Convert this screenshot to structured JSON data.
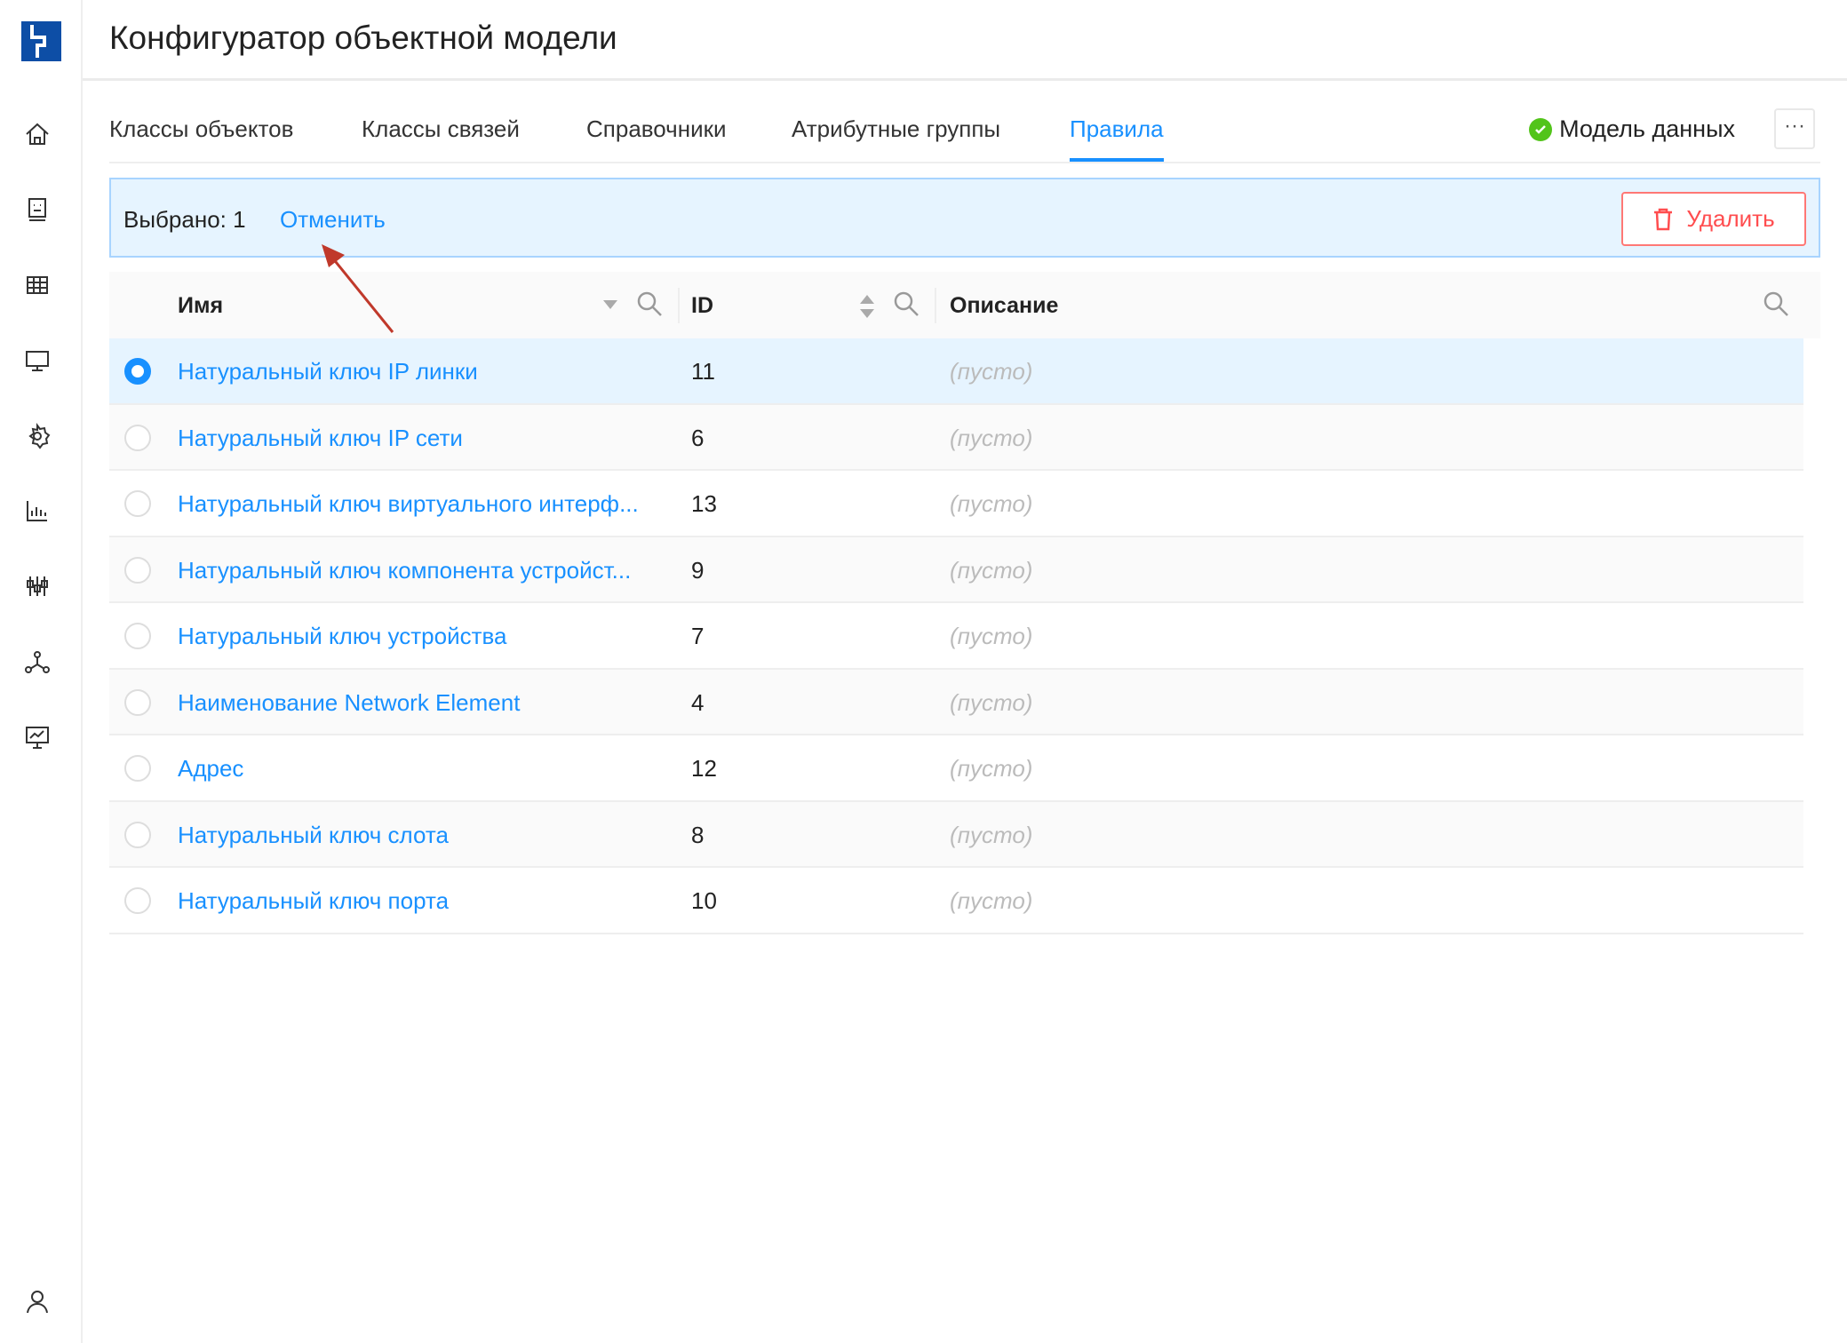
{
  "app": {
    "title": "Конфигуратор объектной модели"
  },
  "sidebar": {
    "items": [
      "home-icon",
      "profile-card-icon",
      "table-icon",
      "monitor-icon",
      "gear-icon",
      "bar-chart-icon",
      "sliders-icon",
      "network-icon",
      "presentation-chart-icon"
    ],
    "bottom": "user-icon"
  },
  "tabs": [
    {
      "label": "Классы объектов"
    },
    {
      "label": "Классы связей"
    },
    {
      "label": "Справочники"
    },
    {
      "label": "Атрибутные группы"
    },
    {
      "label": "Правила",
      "active": true
    }
  ],
  "model": {
    "label": "Модель данных",
    "status_color": "#52c41a",
    "more": "···"
  },
  "selection": {
    "count_label": "Выбрано: 1",
    "cancel_label": "Отменить",
    "delete_label": "Удалить"
  },
  "table": {
    "columns": [
      "Имя",
      "ID",
      "Описание"
    ],
    "rows": [
      {
        "name": "Натуральный ключ IP линки",
        "id": "11",
        "desc": "(пусто)",
        "selected": true
      },
      {
        "name": "Натуральный ключ IP сети",
        "id": "6",
        "desc": "(пусто)"
      },
      {
        "name": "Натуральный ключ виртуального интерф...",
        "id": "13",
        "desc": "(пусто)"
      },
      {
        "name": "Натуральный ключ компонента устройст...",
        "id": "9",
        "desc": "(пусто)"
      },
      {
        "name": "Натуральный ключ устройства",
        "id": "7",
        "desc": "(пусто)"
      },
      {
        "name": "Наименование Network Element",
        "id": "4",
        "desc": "(пусто)"
      },
      {
        "name": "Адрес",
        "id": "12",
        "desc": "(пусто)"
      },
      {
        "name": "Натуральный ключ слота",
        "id": "8",
        "desc": "(пусто)"
      },
      {
        "name": "Натуральный ключ порта",
        "id": "10",
        "desc": "(пусто)"
      }
    ]
  },
  "colors": {
    "accent": "#1890ff",
    "danger": "#ff4d4f",
    "annotation_arrow": "#c0392b"
  }
}
